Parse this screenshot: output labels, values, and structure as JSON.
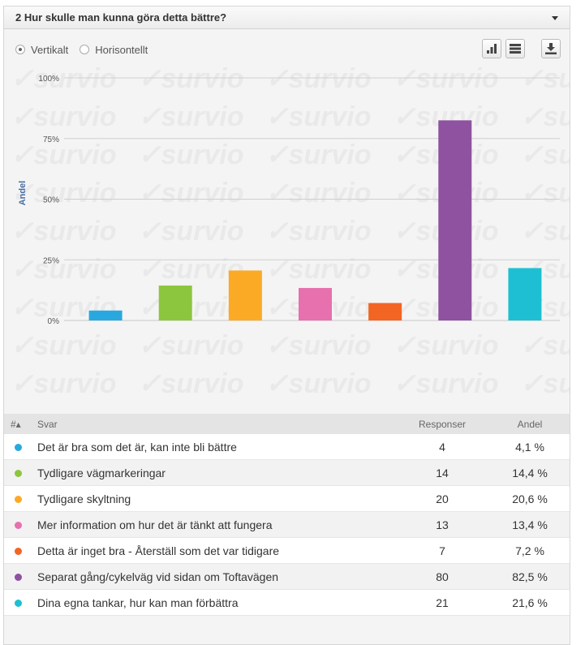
{
  "header": {
    "title": "2 Hur skulle man kunna göra detta bättre?"
  },
  "view_toggle": {
    "options": [
      {
        "label": "Vertikalt",
        "checked": true
      },
      {
        "label": "Horisontellt",
        "checked": false
      }
    ]
  },
  "watermark_text": "survio",
  "chart_data": {
    "type": "bar",
    "ylabel": "Andel",
    "ylim": [
      0,
      100
    ],
    "yticks": [
      "0%",
      "25%",
      "50%",
      "75%",
      "100%"
    ],
    "categories": [
      "Det är bra som det är, kan inte bli bättre",
      "Tydligare vägmarkeringar",
      "Tydligare skyltning",
      "Mer information om hur det är tänkt att fungera",
      "Detta är inget bra - Återställ som det var tidigare",
      "Separat gång/cykelväg vid sidan om Toftavägen",
      "Dina egna tankar, hur kan man förbättra"
    ],
    "values": [
      4.1,
      14.4,
      20.6,
      13.4,
      7.2,
      82.5,
      21.6
    ],
    "colors": [
      "#29a8e0",
      "#8cc63f",
      "#fbaa26",
      "#e770ae",
      "#f26522",
      "#8e52a0",
      "#1ebfd2"
    ],
    "grid": true,
    "legend": "none"
  },
  "table": {
    "headers": {
      "num": "#▴",
      "answer": "Svar",
      "responses": "Responser",
      "share": "Andel"
    },
    "rows": [
      {
        "label": "Det är bra som det är, kan inte bli bättre",
        "responses": "4",
        "share": "4,1 %"
      },
      {
        "label": "Tydligare vägmarkeringar",
        "responses": "14",
        "share": "14,4 %"
      },
      {
        "label": "Tydligare skyltning",
        "responses": "20",
        "share": "20,6 %"
      },
      {
        "label": "Mer information om hur det är tänkt att fungera",
        "responses": "13",
        "share": "13,4 %"
      },
      {
        "label": "Detta är inget bra - Återställ som det var tidigare",
        "responses": "7",
        "share": "7,2 %"
      },
      {
        "label": "Separat gång/cykelväg vid sidan om Toftavägen",
        "responses": "80",
        "share": "82,5 %"
      },
      {
        "label": "Dina egna tankar, hur kan man förbättra",
        "responses": "21",
        "share": "21,6 %"
      }
    ]
  }
}
